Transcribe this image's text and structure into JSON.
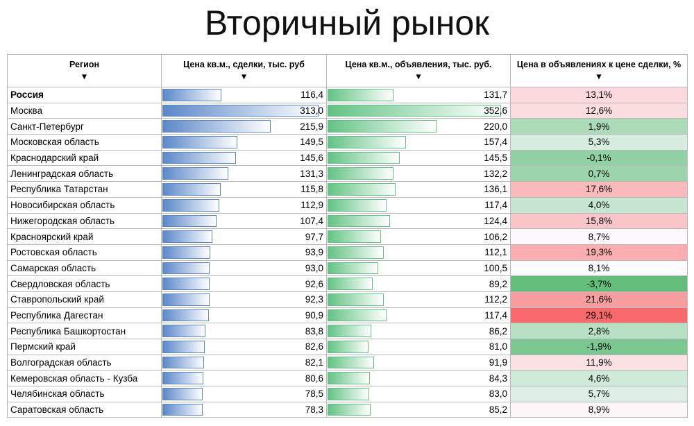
{
  "header": {
    "title": "Вторичный рынок"
  },
  "table": {
    "columns": [
      "Регион",
      "Цена кв.м., сделки, тыс. руб",
      "Цена кв.м., объявления, тыс. руб.",
      "Цена в объявлениях к цене сделки, %"
    ],
    "rows": [
      [
        "Россия",
        "116,4",
        "131,7",
        "13,1%"
      ],
      [
        "Москва",
        "313,0",
        "352,6",
        "12,6%"
      ],
      [
        "Санкт-Петербург",
        "215,9",
        "220,0",
        "1,9%"
      ],
      [
        "Московская область",
        "149,5",
        "157,4",
        "5,3%"
      ],
      [
        "Краснодарский край",
        "145,6",
        "145,5",
        "-0,1%"
      ],
      [
        "Ленинградская область",
        "131,3",
        "132,2",
        "0,7%"
      ],
      [
        "Республика Татарстан",
        "115,8",
        "136,1",
        "17,6%"
      ],
      [
        "Новосибирская область",
        "112,9",
        "117,4",
        "4,0%"
      ],
      [
        "Нижегородская область",
        "107,4",
        "124,4",
        "15,8%"
      ],
      [
        "Красноярский край",
        "97,7",
        "106,2",
        "8,7%"
      ],
      [
        "Ростовская область",
        "93,9",
        "112,1",
        "19,3%"
      ],
      [
        "Самарская область",
        "93,0",
        "100,5",
        "8,1%"
      ],
      [
        "Свердловская область",
        "92,6",
        "89,2",
        "-3,7%"
      ],
      [
        "Ставропольский край",
        "92,3",
        "112,2",
        "21,6%"
      ],
      [
        "Республика Дагестан",
        "90,9",
        "117,4",
        "29,1%"
      ],
      [
        "Республика Башкортостан",
        "83,8",
        "86,2",
        "2,8%"
      ],
      [
        "Пермский край",
        "82,6",
        "81,0",
        "-1,9%"
      ],
      [
        "Волгоградская область",
        "82,1",
        "91,9",
        "11,9%"
      ],
      [
        "Кемеровская область - Кузба",
        "80,6",
        "84,3",
        "4,6%"
      ],
      [
        "Челябинская область",
        "78,5",
        "83,0",
        "5,7%"
      ],
      [
        "Саратовская область",
        "78,3",
        "85,2",
        "8,9%"
      ]
    ]
  }
}
